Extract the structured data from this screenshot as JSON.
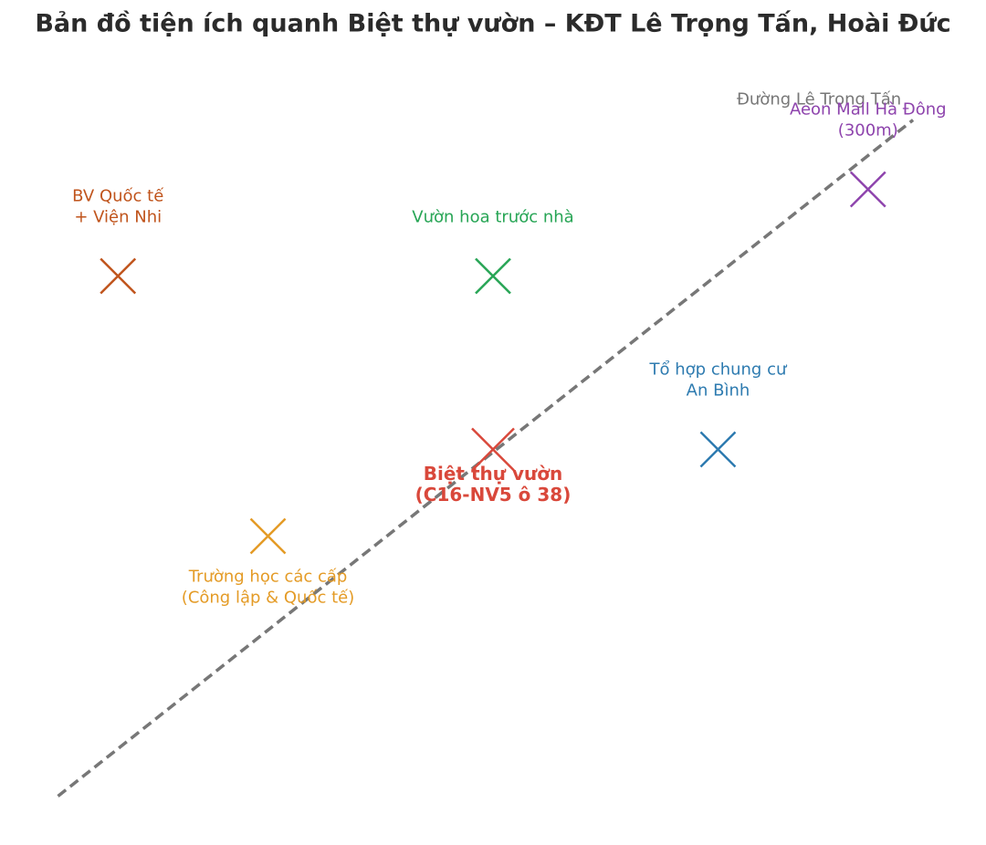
{
  "chart_data": {
    "type": "scatter",
    "title": "Bản đồ tiện ích quanh Biệt thự vườn – KĐT Lê Trọng Tấn, Hoài Đức",
    "xlim": [
      -6.5,
      6.5
    ],
    "ylim": [
      -4.5,
      4.5
    ],
    "road": {
      "name": "Đường Lê Trọng Tấn",
      "color": "#777777",
      "x": [
        -5.8,
        5.6
      ],
      "y": [
        -4,
        3.8
      ]
    },
    "points": [
      {
        "label": [
          "BV Quốc tế",
          "+ Viện Nhi"
        ],
        "x": -5,
        "y": 2,
        "color": "#c0541c",
        "label_pos": "above"
      },
      {
        "label": [
          "Vườn hoa trước nhà"
        ],
        "x": 0,
        "y": 2,
        "color": "#27a555",
        "label_pos": "above"
      },
      {
        "label": [
          "Aeon Mall Hà Đông",
          "(300m)"
        ],
        "x": 5,
        "y": 3,
        "color": "#8e44ad",
        "label_pos": "above"
      },
      {
        "label": [
          "Tổ hợp chung cư",
          "An Bình"
        ],
        "x": 3,
        "y": 0,
        "color": "#2e7bb0",
        "label_pos": "above"
      },
      {
        "label": [
          "Biệt thự vườn",
          "(C16-NV5 ô 38)"
        ],
        "x": 0,
        "y": 0,
        "color": "#d9483b",
        "label_pos": "below",
        "highlight": true
      },
      {
        "label": [
          "Trường học các cấp",
          "(Công lập & Quốc tế)"
        ],
        "x": -3,
        "y": -1,
        "color": "#e49b26",
        "label_pos": "below"
      }
    ]
  }
}
